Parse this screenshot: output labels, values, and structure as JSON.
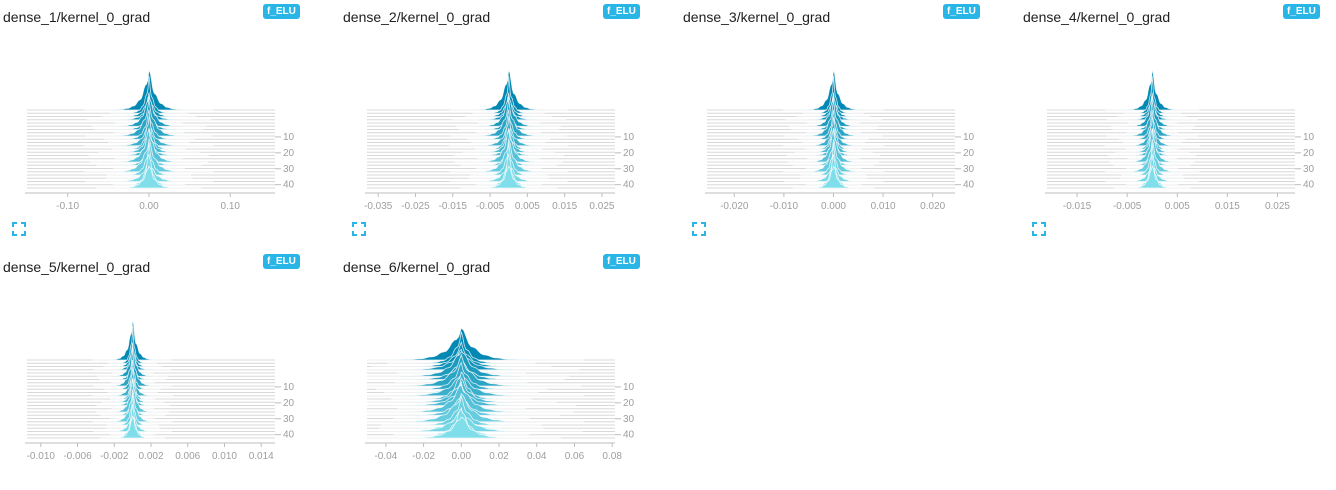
{
  "colors": {
    "accent": "#29b6e6",
    "histogram_front": "#80deea",
    "histogram_back": "#0288b3"
  },
  "chart_data": [
    {
      "type": "histogram",
      "title": "dense_1/kernel_0_grad",
      "run_label": "f_ELU",
      "x_ticks": [
        "-0.10",
        "0.00",
        "0.10"
      ],
      "x_tick_values": [
        -0.1,
        0.0,
        0.1
      ],
      "xlim": [
        -0.15,
        0.155
      ],
      "y_ticks": [
        "10",
        "20",
        "30",
        "40"
      ],
      "y_tick_values": [
        10,
        20,
        30,
        40
      ],
      "steps": [
        0,
        49
      ],
      "center": 0.0,
      "spread": 0.011,
      "peak_scale": 1.0
    },
    {
      "type": "histogram",
      "title": "dense_2/kernel_0_grad",
      "run_label": "f_ELU",
      "x_ticks": [
        "-0.035",
        "-0.025",
        "-0.015",
        "-0.005",
        "0.005",
        "0.015",
        "0.025"
      ],
      "x_tick_values": [
        -0.035,
        -0.025,
        -0.015,
        -0.005,
        0.005,
        0.015,
        0.025
      ],
      "xlim": [
        -0.038,
        0.0285
      ],
      "y_ticks": [
        "10",
        "20",
        "30",
        "40"
      ],
      "y_tick_values": [
        10,
        20,
        30,
        40
      ],
      "steps": [
        0,
        49
      ],
      "center": 0.0,
      "spread": 0.0022,
      "peak_scale": 1.0
    },
    {
      "type": "histogram",
      "title": "dense_3/kernel_0_grad",
      "run_label": "f_ELU",
      "x_ticks": [
        "-0.020",
        "-0.010",
        "0.000",
        "0.010",
        "0.020"
      ],
      "x_tick_values": [
        -0.02,
        -0.01,
        0.0,
        0.01,
        0.02
      ],
      "xlim": [
        -0.0255,
        0.0245
      ],
      "y_ticks": [
        "10",
        "20",
        "30",
        "40"
      ],
      "y_tick_values": [
        10,
        20,
        30,
        40
      ],
      "steps": [
        0,
        49
      ],
      "center": 0.0,
      "spread": 0.0014,
      "peak_scale": 1.0
    },
    {
      "type": "histogram",
      "title": "dense_4/kernel_0_grad",
      "run_label": "f_ELU",
      "x_ticks": [
        "-0.015",
        "-0.005",
        "0.005",
        "0.015",
        "0.025"
      ],
      "x_tick_values": [
        -0.015,
        -0.005,
        0.005,
        0.015,
        0.025
      ],
      "xlim": [
        -0.021,
        0.0285
      ],
      "y_ticks": [
        "10",
        "20",
        "30",
        "40"
      ],
      "y_tick_values": [
        10,
        20,
        30,
        40
      ],
      "steps": [
        0,
        49
      ],
      "center": 0.0,
      "spread": 0.0013,
      "peak_scale": 1.0
    },
    {
      "type": "histogram",
      "title": "dense_5/kernel_0_grad",
      "run_label": "f_ELU",
      "x_ticks": [
        "-0.010",
        "-0.006",
        "-0.002",
        "0.002",
        "0.006",
        "0.010",
        "0.014"
      ],
      "x_tick_values": [
        -0.01,
        -0.006,
        -0.002,
        0.002,
        0.006,
        0.01,
        0.014
      ],
      "xlim": [
        -0.0115,
        0.0155
      ],
      "y_ticks": [
        "10",
        "20",
        "30",
        "40"
      ],
      "y_tick_values": [
        10,
        20,
        30,
        40
      ],
      "steps": [
        0,
        49
      ],
      "center": 0.0,
      "spread": 0.0006,
      "peak_scale": 1.0
    },
    {
      "type": "histogram",
      "title": "dense_6/kernel_0_grad",
      "run_label": "f_ELU",
      "x_ticks": [
        "-0.04",
        "-0.02",
        "0.00",
        "0.02",
        "0.04",
        "0.06",
        "0.08"
      ],
      "x_tick_values": [
        -0.04,
        -0.02,
        0.0,
        0.02,
        0.04,
        0.06,
        0.08
      ],
      "xlim": [
        -0.05,
        0.0815
      ],
      "y_ticks": [
        "10",
        "20",
        "30",
        "40"
      ],
      "y_tick_values": [
        10,
        20,
        30,
        40
      ],
      "steps": [
        0,
        49
      ],
      "center": 0.0,
      "spread": 0.009,
      "peak_scale": 0.55
    }
  ]
}
